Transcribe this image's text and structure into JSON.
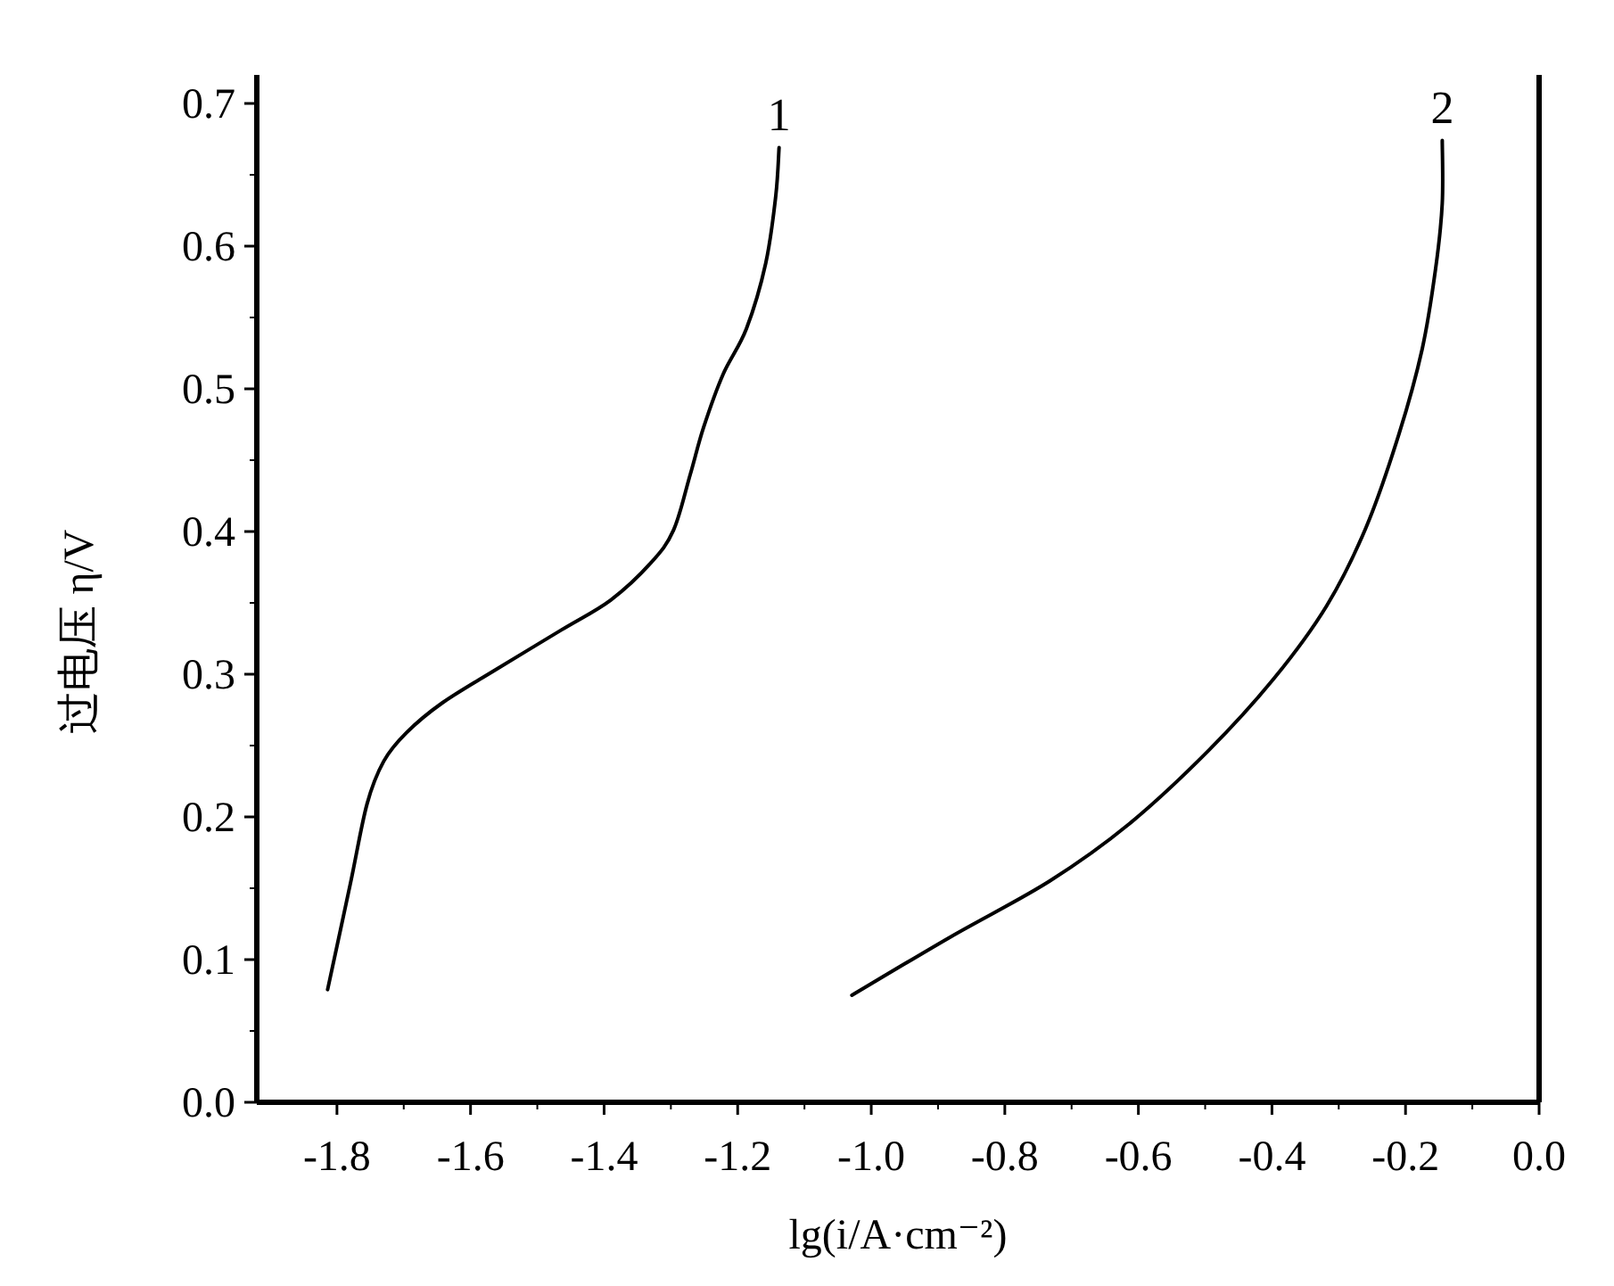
{
  "chart_data": {
    "type": "line",
    "xlabel": "lg(i/A·cm⁻²)",
    "ylabel": "过电压 η/V",
    "xlim": [
      -1.92,
      0
    ],
    "ylim": [
      0,
      0.72
    ],
    "xticks": [
      {
        "value": -1.8,
        "label": "-1.8"
      },
      {
        "value": -1.6,
        "label": "-1.6"
      },
      {
        "value": -1.4,
        "label": "-1.4"
      },
      {
        "value": -1.2,
        "label": "-1.2"
      },
      {
        "value": -1.0,
        "label": "-1.0"
      },
      {
        "value": -0.8,
        "label": "-0.8"
      },
      {
        "value": -0.6,
        "label": "-0.6"
      },
      {
        "value": -0.4,
        "label": "-0.4"
      },
      {
        "value": -0.2,
        "label": "-0.2"
      },
      {
        "value": 0,
        "label": "0.0"
      }
    ],
    "yticks": [
      {
        "value": 0,
        "label": "0.0"
      },
      0.1,
      0.2,
      0.3,
      0.4,
      0.5,
      0.6,
      0.7
    ],
    "series": [
      {
        "name": "1",
        "color": "#000000",
        "x": [
          -1.814,
          -1.78,
          -1.755,
          -1.73,
          -1.696,
          -1.642,
          -1.563,
          -1.464,
          -1.39,
          -1.33,
          -1.296,
          -1.271,
          -1.251,
          -1.222,
          -1.187,
          -1.158,
          -1.143,
          -1.138
        ],
        "values": [
          0.079,
          0.153,
          0.209,
          0.239,
          0.259,
          0.28,
          0.303,
          0.331,
          0.352,
          0.378,
          0.401,
          0.44,
          0.473,
          0.51,
          0.542,
          0.588,
          0.635,
          0.669
        ]
      },
      {
        "name": "2",
        "color": "#000000",
        "x": [
          -1.029,
          -0.881,
          -0.733,
          -0.614,
          -0.496,
          -0.397,
          -0.318,
          -0.259,
          -0.21,
          -0.175,
          -0.155,
          -0.145,
          -0.145
        ],
        "values": [
          0.075,
          0.116,
          0.155,
          0.195,
          0.246,
          0.297,
          0.348,
          0.403,
          0.468,
          0.528,
          0.584,
          0.63,
          0.674
        ]
      }
    ]
  }
}
